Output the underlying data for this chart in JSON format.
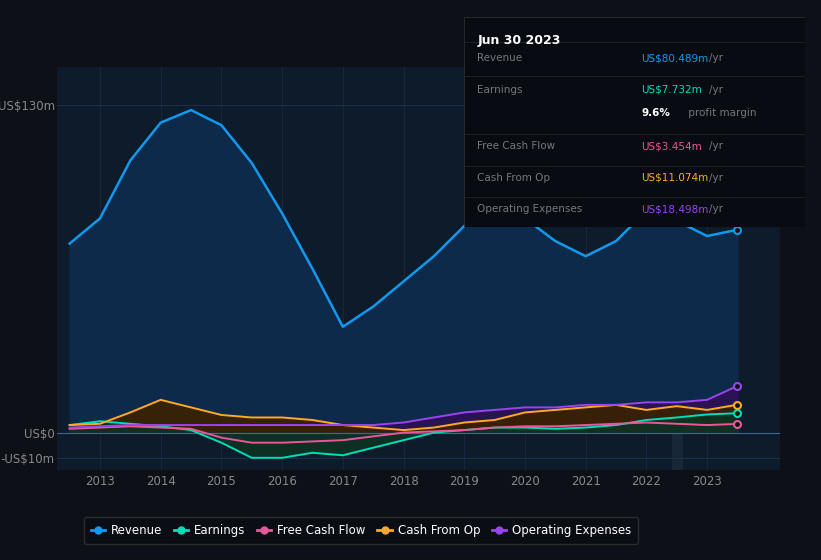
{
  "background_color": "#0d1117",
  "plot_bg_color": "#0d1b2a",
  "grid_color": "#1e3050",
  "years": [
    2012.5,
    2013.0,
    2013.5,
    2014.0,
    2014.5,
    2015.0,
    2015.5,
    2016.0,
    2016.5,
    2017.0,
    2017.5,
    2018.0,
    2018.5,
    2019.0,
    2019.5,
    2020.0,
    2020.5,
    2021.0,
    2021.5,
    2022.0,
    2022.5,
    2023.0,
    2023.5
  ],
  "revenue": [
    75,
    85,
    108,
    123,
    128,
    122,
    107,
    87,
    65,
    42,
    50,
    60,
    70,
    82,
    92,
    85,
    76,
    70,
    76,
    88,
    84,
    78,
    80.5
  ],
  "earnings": [
    3,
    4.5,
    3.5,
    2.5,
    1,
    -4,
    -10,
    -10,
    -8,
    -9,
    -6,
    -3,
    0,
    1,
    2,
    2,
    1.5,
    2,
    3,
    5,
    6,
    7.2,
    7.7
  ],
  "free_cash_flow": [
    1.5,
    2,
    2.5,
    2,
    1.5,
    -2,
    -4,
    -4,
    -3.5,
    -3,
    -1.5,
    0,
    0.5,
    1,
    2,
    2.5,
    2.5,
    3,
    3.5,
    4,
    3.5,
    3,
    3.45
  ],
  "cash_from_op": [
    3,
    3.5,
    8,
    13,
    10,
    7,
    6,
    6,
    5,
    3,
    2,
    1,
    2,
    4,
    5,
    8,
    9,
    10,
    11,
    9,
    10.5,
    9,
    11.07
  ],
  "operating_exp": [
    2,
    2.5,
    3,
    3,
    3,
    3,
    3,
    3,
    3,
    3,
    3,
    4,
    6,
    8,
    9,
    10,
    10,
    11,
    11,
    12,
    12,
    13,
    18.5
  ],
  "revenue_color": "#1199ee",
  "earnings_color": "#00ddbb",
  "free_cash_flow_color": "#ee5599",
  "cash_from_op_color": "#ffaa22",
  "operating_exp_color": "#9944ee",
  "revenue_fill": "#0d2a4a",
  "earnings_fill": "#0d3322",
  "free_cash_flow_fill": "#4a1530",
  "cash_from_op_fill": "#3a2200",
  "operating_exp_fill": "#2d1155",
  "ylim_min": -15,
  "ylim_max": 145,
  "ytick_labels": [
    "US$130m",
    "US$0",
    "-US$10m"
  ],
  "ytick_vals": [
    130,
    0,
    -10
  ],
  "xlim_min": 2012.3,
  "xlim_max": 2024.2,
  "xtick_vals": [
    2013,
    2014,
    2015,
    2016,
    2017,
    2018,
    2019,
    2020,
    2021,
    2022,
    2023
  ],
  "info_box_title": "Jun 30 2023",
  "info_rows": [
    {
      "label": "Revenue",
      "value": "US$80.489m",
      "unit": "/yr",
      "value_color": "#1199ee"
    },
    {
      "label": "Earnings",
      "value": "US$7.732m",
      "unit": "/yr",
      "value_color": "#00ddbb"
    },
    {
      "label": "",
      "value": "9.6%",
      "unit": " profit margin",
      "value_color": "#ffffff",
      "bold": true
    },
    {
      "label": "Free Cash Flow",
      "value": "US$3.454m",
      "unit": "/yr",
      "value_color": "#ee5599"
    },
    {
      "label": "Cash From Op",
      "value": "US$11.074m",
      "unit": "/yr",
      "value_color": "#ffaa22"
    },
    {
      "label": "Operating Expenses",
      "value": "US$18.498m",
      "unit": "/yr",
      "value_color": "#9944ee"
    }
  ],
  "legend_items": [
    {
      "label": "Revenue",
      "color": "#1199ee"
    },
    {
      "label": "Earnings",
      "color": "#00ddbb"
    },
    {
      "label": "Free Cash Flow",
      "color": "#ee5599"
    },
    {
      "label": "Cash From Op",
      "color": "#ffaa22"
    },
    {
      "label": "Operating Expenses",
      "color": "#9944ee"
    }
  ]
}
